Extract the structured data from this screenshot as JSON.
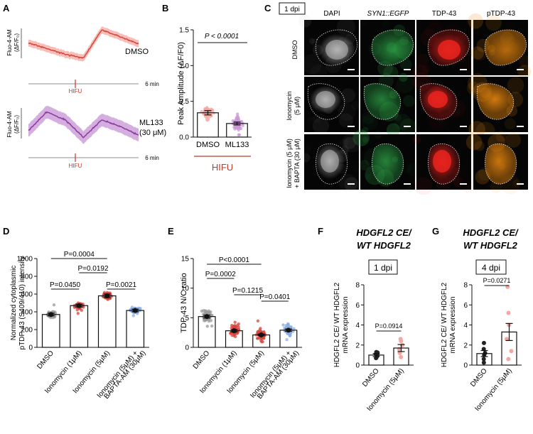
{
  "colors": {
    "red": "#d6453d",
    "red_light": "#f4a8a2",
    "purple": "#8a3a9c",
    "purple_light": "#c99ad6",
    "blue": "#8aaee0",
    "grey": "#9a9a9a",
    "hifu": "#c0392b",
    "dapi": "#bdbdbd",
    "egfp": "#2fa84a",
    "tdp": "#e8231e",
    "ptdp": "#e8870f"
  },
  "panelA": {
    "label": "A",
    "ylabel_top": "Fluo-4-AM",
    "ylabel_bottom": "(ΔF/F₀)",
    "trace1": "DMSO",
    "trace2_line1": "ML133",
    "trace2_line2": "(30 μM)",
    "marker": "HIFU",
    "duration": "6 min"
  },
  "panelB": {
    "label": "B",
    "bracket_label": "HIFU",
    "significance": "P < 0.0001"
  },
  "panelC": {
    "label": "C",
    "time_badge": "1 dpi",
    "columns": [
      "DAPI",
      "SYN1::EGFP",
      "TDP-43",
      "pTDP-43"
    ],
    "rows": [
      {
        "line1": "DMSO",
        "line2": ""
      },
      {
        "line1": "Ionomycin",
        "line2": "(5 μM)"
      },
      {
        "line1": "Ionomycin (5 μM)",
        "line2": "+ BAPTA (30 μM)"
      }
    ]
  },
  "panelD": {
    "label": "D",
    "p_values": [
      "P=0.0004",
      "P=0.0192",
      "P=0.0450",
      "P=0.0021"
    ]
  },
  "panelE": {
    "label": "E",
    "p_values": [
      "P<0.0001",
      "P=0.0002",
      "P=0.1215",
      "P=0.0401"
    ]
  },
  "panelF": {
    "label": "F",
    "title_line1": "HDGFL2 CE/",
    "title_line2": "WT HDGFL2",
    "time_badge": "1 dpi",
    "p_value": "P=0.0914"
  },
  "panelG": {
    "label": "G",
    "title_line1": "HDGFL2 CE/",
    "title_line2": "WT HDGFL2",
    "time_badge": "4 dpi",
    "p_value": "P=0.0271"
  },
  "chart_data": [
    {
      "id": "A",
      "type": "line",
      "xlabel": "",
      "ylabel": "Fluo-4-AM (ΔF/F₀)",
      "series": [
        {
          "name": "DMSO",
          "x": [
            0,
            1,
            2,
            3,
            4,
            5,
            6
          ],
          "y": [
            0.72,
            0.6,
            0.48,
            0.4,
            1.0,
            0.85,
            0.7
          ]
        },
        {
          "name": "ML133 (30 μM)",
          "x": [
            0,
            1,
            2,
            3,
            4,
            5,
            6
          ],
          "y": [
            0.45,
            0.88,
            0.7,
            0.3,
            0.7,
            0.55,
            0.35
          ]
        }
      ]
    },
    {
      "id": "B",
      "type": "bar",
      "categories": [
        "DMSO",
        "ML133"
      ],
      "values": [
        0.34,
        0.19
      ],
      "errors": [
        0.03,
        0.02
      ],
      "ylabel": "Peak Amplitude (ΔF/F0)",
      "ylim": [
        0,
        1.5
      ],
      "yticks": [
        "0.0",
        "0.5",
        "1.0",
        "1.5"
      ]
    },
    {
      "id": "D",
      "type": "bar",
      "categories": [
        "DMSO",
        "Ionomycin (1μM)",
        "Ionomycin (5μM)",
        "Ionomycin (5μM) + BAPTA-AM (30μM)"
      ],
      "values": [
        370,
        470,
        580,
        415
      ],
      "errors": [
        15,
        15,
        20,
        15
      ],
      "ylabel_line1": "Normalized cytoplasmic",
      "ylabel_line2": "pTDP-43 (S409/410) intensity",
      "ylim": [
        0,
        1000
      ],
      "yticks": [
        "0",
        "200",
        "400",
        "600",
        "800",
        "1000"
      ]
    },
    {
      "id": "E",
      "type": "bar",
      "categories": [
        "DMSO",
        "Ionomycin (1μM)",
        "Ionomycin (5μM)",
        "Ionomycin (5μM) + BAPTA-AM (30μM)"
      ],
      "values": [
        5.2,
        2.8,
        2.1,
        2.9
      ],
      "errors": [
        0.25,
        0.2,
        0.15,
        0.2
      ],
      "ylabel": "TDP-43 N/C ratio",
      "ylim": [
        0,
        15
      ],
      "yticks": [
        "0",
        "5",
        "10",
        "15"
      ]
    },
    {
      "id": "F",
      "type": "bar",
      "categories": [
        "DMSO",
        "Ionomycin (5μM)"
      ],
      "values": [
        1.0,
        1.7
      ],
      "errors": [
        0.15,
        0.35
      ],
      "points": [
        [
          0.7,
          0.9,
          1.0,
          1.1,
          1.25,
          1.3,
          0.8
        ],
        [
          0.8,
          1.2,
          1.6,
          2.0,
          2.4,
          2.6
        ]
      ],
      "ylabel_line1": "HDGFL2 CE/ WT HDGFL2",
      "ylabel_line2": "mRNA expression",
      "ylim": [
        0,
        8
      ],
      "yticks": [
        "0",
        "2",
        "4",
        "6",
        "8"
      ]
    },
    {
      "id": "G",
      "type": "bar",
      "categories": [
        "DMSO",
        "Ionomycin (5μM)"
      ],
      "values": [
        1.15,
        3.3
      ],
      "errors": [
        0.3,
        0.85
      ],
      "points": [
        [
          0.25,
          0.6,
          1.0,
          1.2,
          1.6,
          2.2
        ],
        [
          0.6,
          1.4,
          2.6,
          4.0,
          5.2,
          7.8
        ]
      ],
      "ylabel_line1": "HDGFL2 CE/ WT HDGFL2",
      "ylabel_line2": "mRNA expression",
      "ylim": [
        0,
        8
      ],
      "yticks": [
        "0",
        "2",
        "4",
        "6",
        "8"
      ]
    }
  ]
}
